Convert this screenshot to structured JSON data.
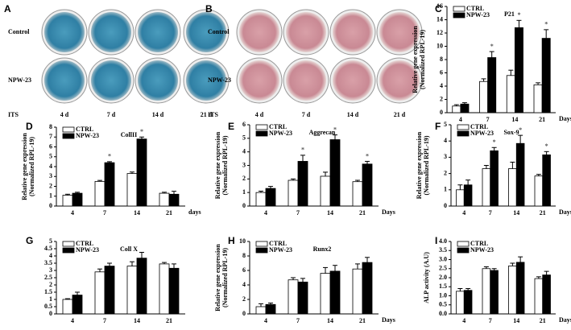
{
  "photo_panels": [
    {
      "label": "A",
      "rows": [
        "Control",
        "NPW-23"
      ],
      "footer": "ITS",
      "days": [
        "4 d",
        "7 d",
        "14 d",
        "21 d"
      ]
    },
    {
      "label": "B",
      "rows": [
        "Control",
        "NPW-23"
      ],
      "footer": "ITS",
      "days": [
        "4 d",
        "7 d",
        "14 d",
        "21 d"
      ]
    }
  ],
  "chart_data": [
    {
      "type": "bar",
      "panel_label": "C",
      "title": "P21",
      "y_label": [
        "Relative gene expression",
        "(Normalized RPL-19)"
      ],
      "x_label": "Days",
      "categories": [
        "4",
        "7",
        "14",
        "21"
      ],
      "ylim": [
        0,
        16
      ],
      "yticks": [
        0,
        2,
        4,
        6,
        8,
        10,
        12,
        14,
        16
      ],
      "legend": "upper left",
      "significance_label": "*",
      "series": [
        {
          "name": "CTRL",
          "color": "#ffffff",
          "values": [
            1.0,
            4.7,
            5.6,
            4.2
          ],
          "errors": [
            0.2,
            0.4,
            0.8,
            0.3
          ],
          "significant": [
            false,
            false,
            false,
            false
          ]
        },
        {
          "name": "NPW-23",
          "color": "#000000",
          "values": [
            1.3,
            8.3,
            12.8,
            11.2
          ],
          "errors": [
            0.2,
            0.9,
            1.1,
            1.3
          ],
          "significant": [
            false,
            true,
            true,
            true
          ]
        }
      ]
    },
    {
      "type": "bar",
      "panel_label": "D",
      "title": "CollII",
      "y_label": [
        "Relative gene expression",
        "(Normalized RPL-19)"
      ],
      "x_label": "days",
      "categories": [
        "4",
        "7",
        "14",
        "21"
      ],
      "ylim": [
        0,
        8
      ],
      "yticks": [
        0,
        1,
        2,
        3,
        4,
        5,
        6,
        7,
        8
      ],
      "legend": "upper left",
      "significance_label": "*",
      "series": [
        {
          "name": "CTRL",
          "color": "#ffffff",
          "values": [
            1.1,
            2.5,
            3.3,
            1.3
          ],
          "errors": [
            0.1,
            0.1,
            0.15,
            0.1
          ],
          "significant": [
            false,
            false,
            false,
            false
          ]
        },
        {
          "name": "NPW-23",
          "color": "#000000",
          "values": [
            1.3,
            4.4,
            6.8,
            1.2
          ],
          "errors": [
            0.1,
            0.1,
            0.2,
            0.3
          ],
          "significant": [
            false,
            true,
            true,
            false
          ]
        }
      ]
    },
    {
      "type": "bar",
      "panel_label": "E",
      "title": "Aggrecan",
      "y_label": [
        "Relative gene expression",
        "(Normalized RPL-19)"
      ],
      "x_label": "Days",
      "categories": [
        "4",
        "7",
        "14",
        "21"
      ],
      "ylim": [
        0,
        6
      ],
      "yticks": [
        0,
        1,
        2,
        3,
        4,
        5,
        6
      ],
      "legend": "upper left",
      "significance_label": "*",
      "series": [
        {
          "name": "CTRL",
          "color": "#ffffff",
          "values": [
            1.0,
            1.9,
            2.2,
            1.8
          ],
          "errors": [
            0.1,
            0.1,
            0.3,
            0.1
          ],
          "significant": [
            false,
            false,
            false,
            false
          ]
        },
        {
          "name": "NPW-23",
          "color": "#000000",
          "values": [
            1.3,
            3.3,
            4.9,
            3.1
          ],
          "errors": [
            0.15,
            0.45,
            0.35,
            0.2
          ],
          "significant": [
            false,
            true,
            true,
            true
          ]
        }
      ]
    },
    {
      "type": "bar",
      "panel_label": "F",
      "title": "Sox-9",
      "y_label": [
        "Relative gene expression",
        "(Normalized RPL-19)"
      ],
      "x_label": "Days",
      "categories": [
        "4",
        "7",
        "14",
        "21"
      ],
      "ylim": [
        0,
        5
      ],
      "yticks": [
        0,
        1,
        2,
        3,
        4,
        5
      ],
      "legend": "upper left",
      "significance_label": "*",
      "series": [
        {
          "name": "CTRL",
          "color": "#ffffff",
          "values": [
            1.0,
            2.3,
            2.3,
            1.85
          ],
          "errors": [
            0.3,
            0.2,
            0.4,
            0.1
          ],
          "significant": [
            false,
            false,
            false,
            false
          ]
        },
        {
          "name": "NPW-23",
          "color": "#000000",
          "values": [
            1.3,
            3.4,
            3.85,
            3.15
          ],
          "errors": [
            0.3,
            0.2,
            0.5,
            0.2
          ],
          "significant": [
            false,
            true,
            true,
            true
          ]
        }
      ]
    },
    {
      "type": "bar",
      "panel_label": "G",
      "title": "Coll X",
      "categories": [
        "4",
        "7",
        "14",
        "21"
      ],
      "ylim": [
        0,
        5
      ],
      "yticks": [
        0,
        0.5,
        1,
        1.5,
        2,
        2.5,
        3,
        3.5,
        4,
        4.5,
        5
      ],
      "legend": "upper left",
      "series": [
        {
          "name": "CTRL",
          "color": "#ffffff",
          "values": [
            1.0,
            2.9,
            3.3,
            3.45
          ],
          "errors": [
            0.05,
            0.2,
            0.3,
            0.1
          ],
          "significant": [
            false,
            false,
            false,
            false
          ]
        },
        {
          "name": "NPW-23",
          "color": "#000000",
          "values": [
            1.3,
            3.3,
            3.85,
            3.15
          ],
          "errors": [
            0.2,
            0.2,
            0.4,
            0.3
          ],
          "significant": [
            false,
            false,
            false,
            false
          ]
        }
      ]
    },
    {
      "type": "bar",
      "panel_label": "H",
      "title": "Runx2",
      "y_label": [
        "Relative gene expression",
        "(Normalized RPL-19)"
      ],
      "x_label": "Days",
      "categories": [
        "4",
        "7",
        "14",
        "21"
      ],
      "ylim": [
        0,
        10
      ],
      "yticks": [
        0,
        2,
        4,
        6,
        8,
        10
      ],
      "legend": "upper left",
      "series": [
        {
          "name": "CTRL",
          "color": "#ffffff",
          "values": [
            1.0,
            4.7,
            5.6,
            6.2
          ],
          "errors": [
            0.4,
            0.3,
            0.8,
            0.7
          ],
          "significant": [
            false,
            false,
            false,
            false
          ]
        },
        {
          "name": "NPW-23",
          "color": "#000000",
          "values": [
            1.3,
            4.4,
            5.9,
            7.1
          ],
          "errors": [
            0.2,
            0.5,
            0.8,
            0.7
          ],
          "significant": [
            false,
            false,
            false,
            false
          ]
        }
      ]
    },
    {
      "type": "bar",
      "panel_label": "I",
      "y_label": [
        "ALP activity (A.U)"
      ],
      "x_label": "Days",
      "categories": [
        "4",
        "7",
        "14",
        "21"
      ],
      "ylim": [
        0,
        4
      ],
      "yticks": [
        {
          "value": 0,
          "label": "0.0"
        },
        0.5,
        {
          "value": 1,
          "label": "1.0"
        },
        1.5,
        {
          "value": 2,
          "label": "2.0"
        },
        2.5,
        {
          "value": 3,
          "label": "3.0"
        },
        3.5,
        {
          "value": 4,
          "label": "4.0"
        }
      ],
      "legend": "upper left",
      "series": [
        {
          "name": "CTRL",
          "color": "#ffffff",
          "values": [
            1.25,
            2.5,
            2.65,
            1.95
          ],
          "errors": [
            0.15,
            0.1,
            0.15,
            0.1
          ],
          "significant": [
            false,
            false,
            false,
            false
          ]
        },
        {
          "name": "NPW-23",
          "color": "#000000",
          "values": [
            1.3,
            2.4,
            2.85,
            2.15
          ],
          "errors": [
            0.1,
            0.1,
            0.3,
            0.2
          ],
          "significant": [
            false,
            false,
            false,
            false
          ]
        }
      ]
    }
  ]
}
